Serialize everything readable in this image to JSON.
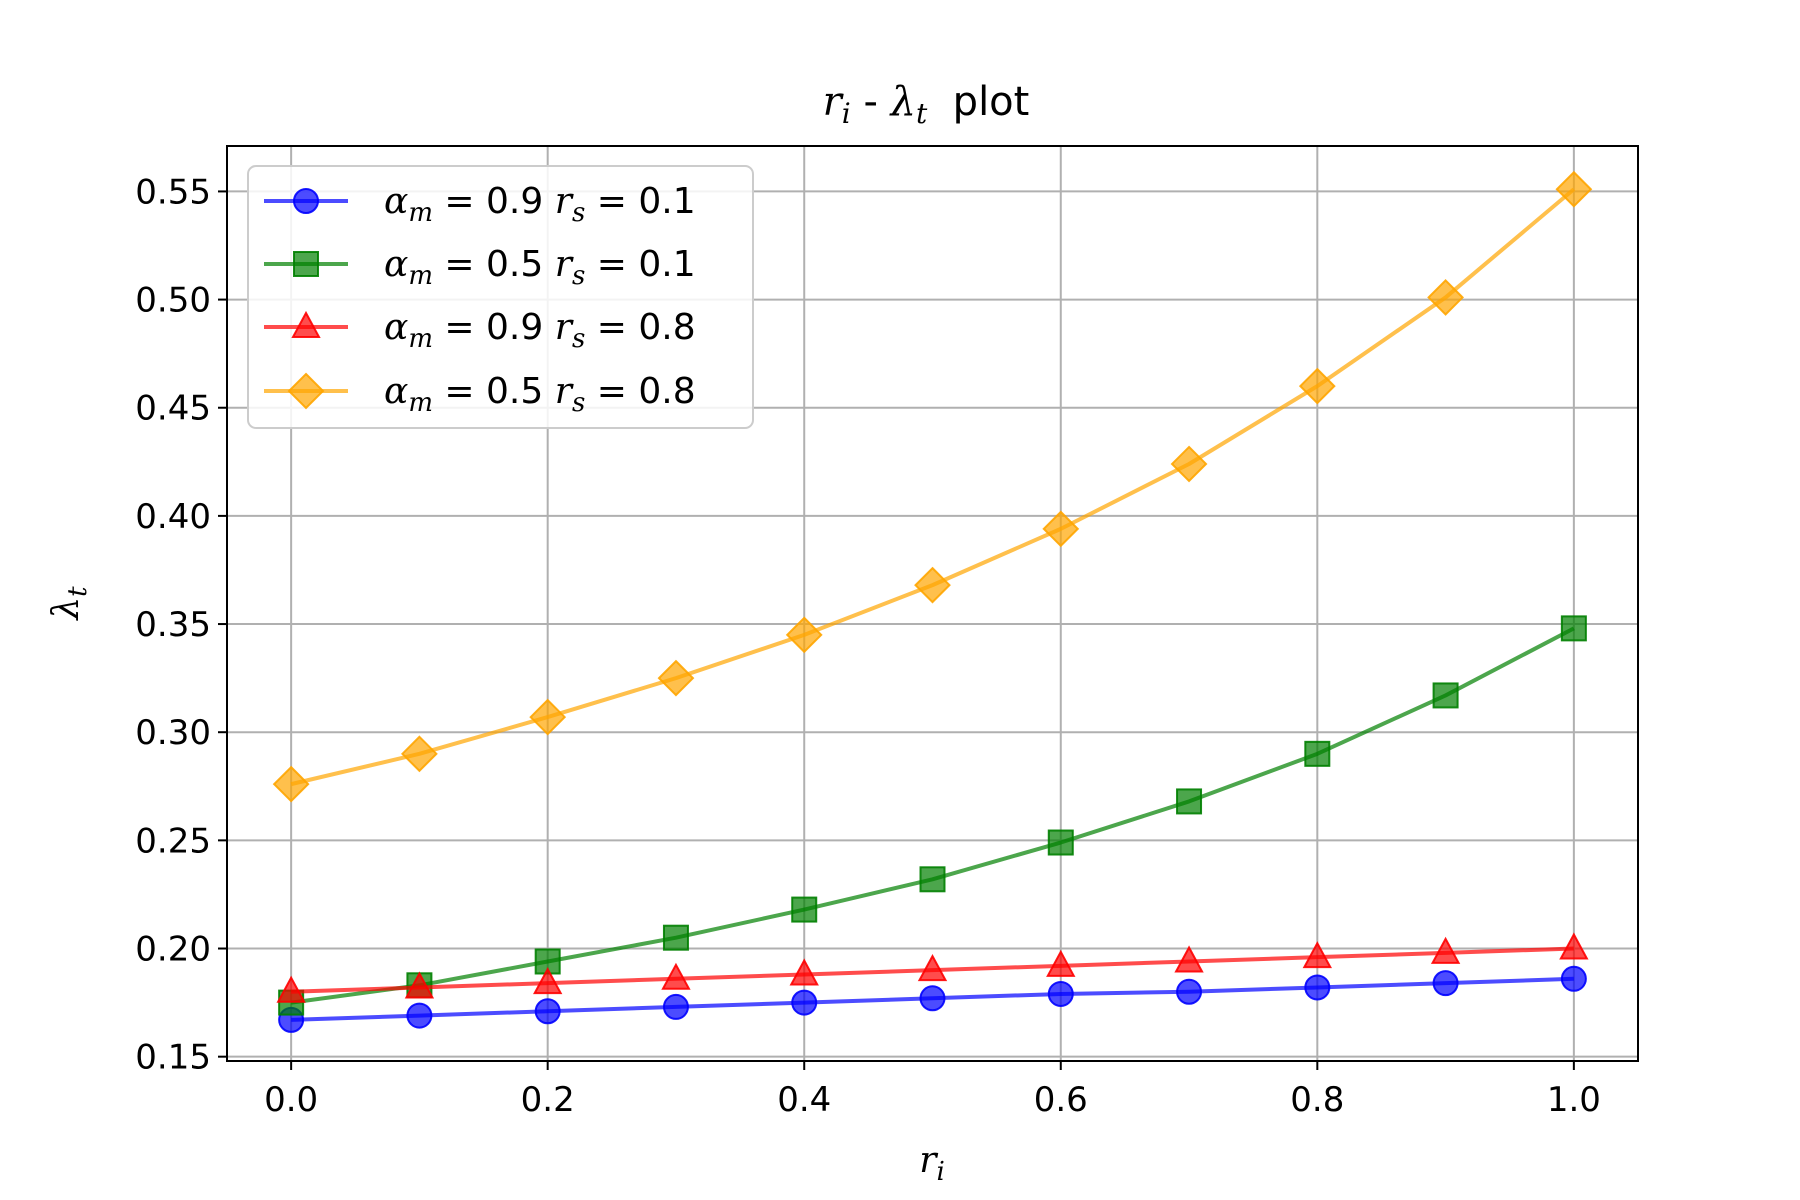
{
  "chart_data": {
    "type": "line",
    "title_parts": {
      "a": "r",
      "a_sub": "i",
      "sep": " - ",
      "b": "λ",
      "b_sub": "t",
      "rest": "  plot"
    },
    "xlabel": {
      "base": "r",
      "sub": "i"
    },
    "ylabel": {
      "base": "λ",
      "sub": "t"
    },
    "xlim": [
      -0.05,
      1.05
    ],
    "ylim": [
      0.148,
      0.571
    ],
    "xticks": [
      0.0,
      0.2,
      0.4,
      0.6,
      0.8,
      1.0
    ],
    "xtick_labels": [
      "0.0",
      "0.2",
      "0.4",
      "0.6",
      "0.8",
      "1.0"
    ],
    "yticks": [
      0.15,
      0.2,
      0.25,
      0.3,
      0.35,
      0.4,
      0.45,
      0.5,
      0.55
    ],
    "ytick_labels": [
      "0.15",
      "0.20",
      "0.25",
      "0.30",
      "0.35",
      "0.40",
      "0.45",
      "0.50",
      "0.55"
    ],
    "grid": true,
    "legend_position": "upper-left",
    "x": [
      0.0,
      0.1,
      0.2,
      0.3,
      0.4,
      0.5,
      0.6,
      0.7,
      0.8,
      0.9,
      1.0
    ],
    "series": [
      {
        "alpha_val": "0.9",
        "rs_val": "0.1",
        "color": "#0000ff",
        "marker": "circle",
        "values": [
          0.167,
          0.169,
          0.171,
          0.173,
          0.175,
          0.177,
          0.179,
          0.18,
          0.182,
          0.184,
          0.186
        ]
      },
      {
        "alpha_val": "0.5",
        "rs_val": "0.1",
        "color": "#008000",
        "marker": "square",
        "values": [
          0.175,
          0.183,
          0.194,
          0.205,
          0.218,
          0.232,
          0.249,
          0.268,
          0.29,
          0.317,
          0.348
        ]
      },
      {
        "alpha_val": "0.9",
        "rs_val": "0.8",
        "color": "#ff0000",
        "marker": "triangle",
        "values": [
          0.18,
          0.182,
          0.184,
          0.186,
          0.188,
          0.19,
          0.192,
          0.194,
          0.196,
          0.198,
          0.2
        ]
      },
      {
        "alpha_val": "0.5",
        "rs_val": "0.8",
        "color": "#ffa500",
        "marker": "diamond",
        "values": [
          0.276,
          0.29,
          0.307,
          0.325,
          0.345,
          0.368,
          0.394,
          0.424,
          0.46,
          0.501,
          0.551
        ]
      }
    ]
  }
}
